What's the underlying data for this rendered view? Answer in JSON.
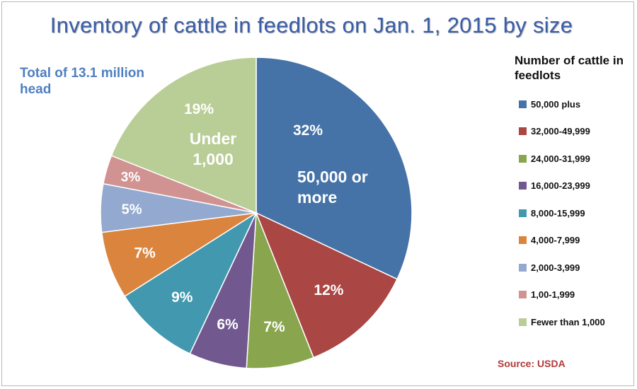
{
  "chart_data": {
    "type": "pie",
    "title": "Inventory of cattle in feedlots on Jan. 1, 2015 by size",
    "subtitle": "Total of 13.1 million head",
    "legend_title": "Number of cattle in feedlots",
    "legend_position": "right",
    "source": "Source: USDA",
    "slices": [
      {
        "legend": "50,000 plus",
        "value": 32,
        "label": "32%",
        "category_text": "50,000 or more",
        "color": "#4572a7"
      },
      {
        "legend": "32,000-49,999",
        "value": 12,
        "label": "12%",
        "color": "#aa4643"
      },
      {
        "legend": "24,000-31,999",
        "value": 7,
        "label": "7%",
        "color": "#89a54e"
      },
      {
        "legend": "16,000-23,999",
        "value": 6,
        "label": "6%",
        "color": "#71588f"
      },
      {
        "legend": "8,000-15,999",
        "value": 9,
        "label": "9%",
        "color": "#4198af"
      },
      {
        "legend": "4,000-7,999",
        "value": 7,
        "label": "7%",
        "color": "#db843d"
      },
      {
        "legend": "2,000-3,999",
        "value": 5,
        "label": "5%",
        "color": "#93a9cf"
      },
      {
        "legend": "1,00-1,999",
        "value": 3,
        "label": "3%",
        "color": "#d19392"
      },
      {
        "legend": "Fewer than 1,000",
        "value": 19,
        "label": "19%",
        "category_text": "Under 1,000",
        "color": "#b9cd96"
      }
    ]
  }
}
